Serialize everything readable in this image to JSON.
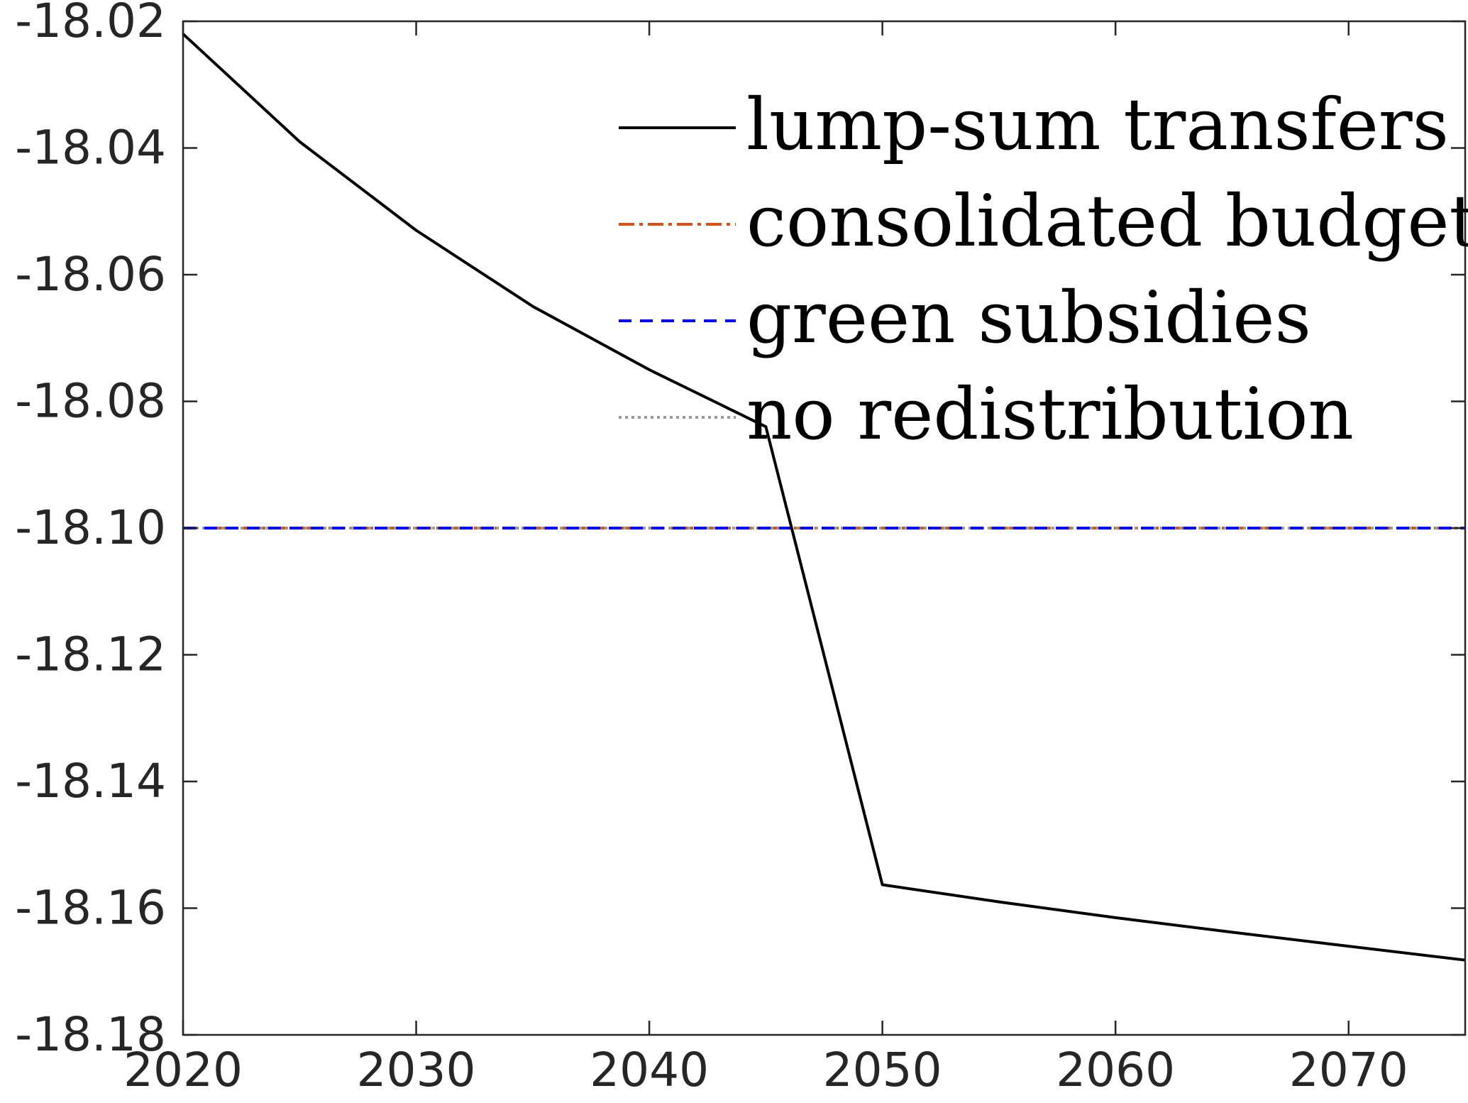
{
  "chart_data": {
    "type": "line",
    "title": "",
    "xlabel": "",
    "ylabel": "",
    "xlim": [
      2020,
      2075
    ],
    "ylim": [
      -18.18,
      -18.02
    ],
    "xticks": [
      2020,
      2030,
      2040,
      2050,
      2060,
      2070
    ],
    "yticks": [
      -18.02,
      -18.04,
      -18.06,
      -18.08,
      -18.1,
      -18.12,
      -18.14,
      -18.16,
      -18.18
    ],
    "xtick_labels": [
      "2020",
      "2030",
      "2040",
      "2050",
      "2060",
      "2070"
    ],
    "ytick_labels": [
      "-18.02",
      "-18.04",
      "-18.06",
      "-18.08",
      "-18.10",
      "-18.12",
      "-18.14",
      "-18.16",
      "-18.18"
    ],
    "grid": false,
    "legend_position": "top-right",
    "series": [
      {
        "name": "lump-sum transfers",
        "color": "#000000",
        "style": "solid",
        "x": [
          2020,
          2025,
          2030,
          2035,
          2040,
          2045,
          2050,
          2055,
          2060,
          2065,
          2070,
          2075
        ],
        "y": [
          -18.022,
          -18.039,
          -18.053,
          -18.065,
          -18.075,
          -18.084,
          -18.1563,
          -18.159,
          -18.1615,
          -18.1638,
          -18.166,
          -18.1682
        ]
      },
      {
        "name": "consolidated budget",
        "color": "#D95319",
        "style": "dashdot",
        "x": [
          2020,
          2075
        ],
        "y": [
          -18.1,
          -18.1
        ]
      },
      {
        "name": "green subsidies",
        "color": "#0000FF",
        "style": "dashed",
        "x": [
          2020,
          2075
        ],
        "y": [
          -18.1,
          -18.1
        ]
      },
      {
        "name": "no redistribution",
        "color": "#999999",
        "style": "dotted",
        "x": [
          2020,
          2075
        ],
        "y": [
          -18.1,
          -18.1
        ]
      }
    ]
  }
}
